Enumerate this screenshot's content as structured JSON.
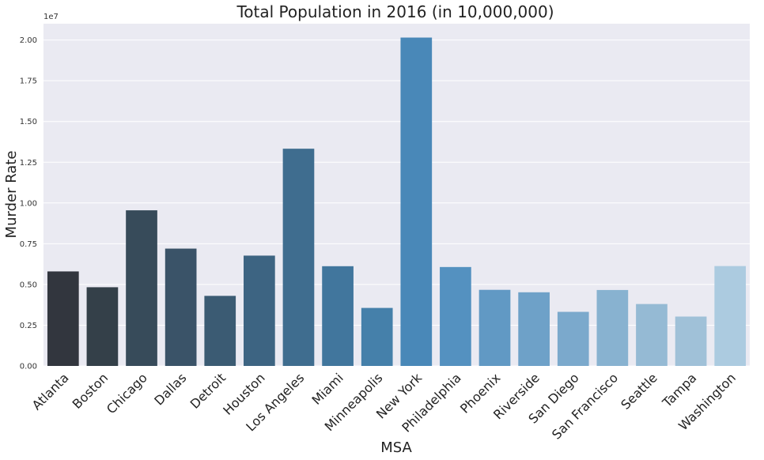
{
  "chart_data": {
    "type": "bar",
    "title": "Total Population in 2016 (in 10,000,000)",
    "xlabel": "MSA",
    "ylabel": "Murder Rate",
    "y_offset_label": "1e7",
    "ylim": [
      0,
      2.1
    ],
    "yticks": [
      "0.00",
      "0.25",
      "0.50",
      "0.75",
      "1.00",
      "1.25",
      "1.50",
      "1.75",
      "2.00"
    ],
    "categories": [
      "Atlanta",
      "Boston",
      "Chicago",
      "Dallas",
      "Detroit",
      "Houston",
      "Los Angeles",
      "Miami",
      "Minneapolis",
      "New York",
      "Philadelphia",
      "Phoenix",
      "Riverside",
      "San Diego",
      "San Francisco",
      "Seattle",
      "Tampa",
      "Washington"
    ],
    "values": [
      0.58,
      0.483,
      0.955,
      0.72,
      0.43,
      0.677,
      1.333,
      0.612,
      0.356,
      2.015,
      0.607,
      0.467,
      0.452,
      0.332,
      0.466,
      0.38,
      0.303,
      0.613
    ],
    "colors": [
      "#32363e",
      "#344049",
      "#374b5a",
      "#3a5368",
      "#3b5b73",
      "#3d6482",
      "#3f6d8f",
      "#41769d",
      "#4580aa",
      "#4988b8",
      "#5491c0",
      "#6199c4",
      "#6ea1c8",
      "#7ba9cc",
      "#88b2d0",
      "#95bad4",
      "#a0c1d8",
      "#accbe0"
    ],
    "grid": true,
    "background": "#eaeaf2"
  }
}
